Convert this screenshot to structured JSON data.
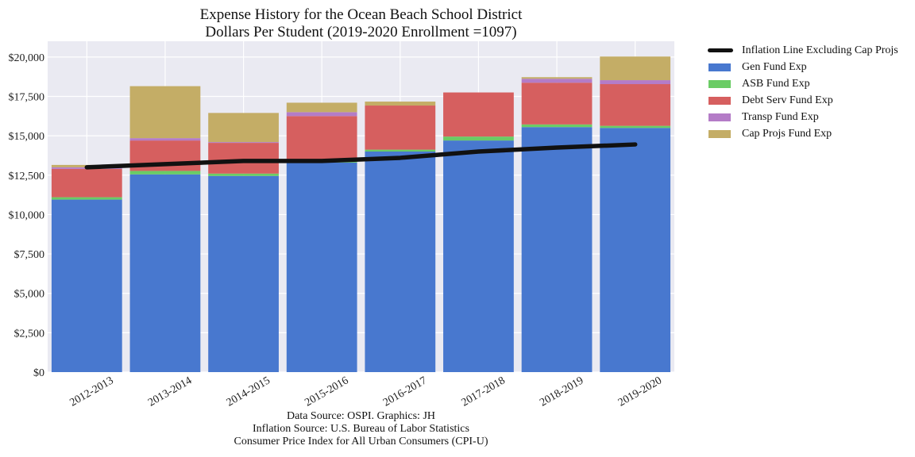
{
  "chart_data": {
    "type": "bar",
    "stacked": true,
    "title": "Expense History for the Ocean Beach School District",
    "subtitle": "Dollars Per Student (2019-2020 Enrollment =1097)",
    "xlabel": "",
    "ylabel": "",
    "ylim": [
      0,
      21000
    ],
    "yticks": [
      0,
      2500,
      5000,
      7500,
      10000,
      12500,
      15000,
      17500,
      20000
    ],
    "ytick_labels": [
      "$0",
      "$2,500",
      "$5,000",
      "$7,500",
      "$10,000",
      "$12,500",
      "$15,000",
      "$17,500",
      "$20,000"
    ],
    "grid": true,
    "legend_position": "outside-top-right",
    "categories": [
      "2012-2013",
      "2013-2014",
      "2014-2015",
      "2015-2016",
      "2016-2017",
      "2017-2018",
      "2018-2019",
      "2019-2020"
    ],
    "series": [
      {
        "name": "Gen Fund Exp",
        "color": "#4878cf",
        "values": [
          10950,
          12550,
          12450,
          13300,
          14000,
          14700,
          15550,
          15500
        ]
      },
      {
        "name": "ASB Fund Exp",
        "color": "#6acc65",
        "values": [
          150,
          220,
          150,
          100,
          120,
          250,
          170,
          130
        ]
      },
      {
        "name": "Debt Serv Fund Exp",
        "color": "#d65f5f",
        "values": [
          1800,
          1930,
          1950,
          2850,
          2800,
          2800,
          2650,
          2650
        ]
      },
      {
        "name": "Transp Fund Exp",
        "color": "#b47cc7",
        "values": [
          100,
          150,
          50,
          250,
          0,
          0,
          250,
          250
        ]
      },
      {
        "name": "Cap Projs Fund Exp",
        "color": "#c4ad66",
        "values": [
          150,
          3300,
          1850,
          600,
          250,
          0,
          100,
          1500
        ]
      }
    ],
    "line_series": {
      "name": "Inflation Line Excluding Cap Projs",
      "color": "#111111",
      "values": [
        13000,
        13200,
        13400,
        13400,
        13600,
        14000,
        14250,
        14450
      ]
    }
  },
  "source_notes": [
    "Data Source: OSPI. Graphics: JH",
    "Inflation Source: U.S. Bureau of Labor Statistics",
    "Consumer Price Index for All Urban Consumers (CPI-U)"
  ]
}
